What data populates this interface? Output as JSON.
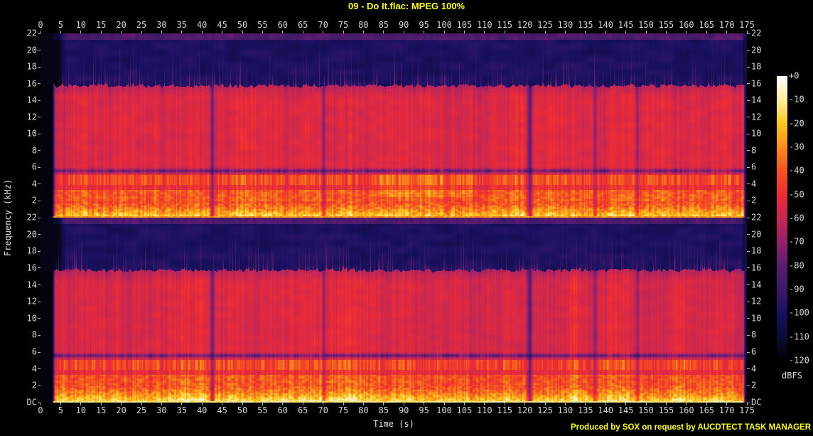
{
  "header": {
    "title": "09 - Do It.flac: MPEG 100%"
  },
  "footer": {
    "credit": "Produced by SOX on request by AUCDTECT TASK MANAGER"
  },
  "axes": {
    "xlabel": "Time (s)",
    "ylabel": "Frequency (kHz)",
    "time_ticks": [
      0,
      5,
      10,
      15,
      20,
      25,
      30,
      35,
      40,
      45,
      50,
      55,
      60,
      65,
      70,
      75,
      80,
      85,
      90,
      95,
      100,
      105,
      110,
      115,
      120,
      125,
      130,
      135,
      140,
      145,
      150,
      155,
      160,
      165,
      170,
      175
    ],
    "freq_ticks": [
      "22",
      "20",
      "18",
      "16",
      "14",
      "12",
      "10",
      "8",
      "6",
      "4",
      "2"
    ],
    "dc_label": "DC"
  },
  "colorbar": {
    "label": "dBFS",
    "ticks": [
      "+0",
      "-10",
      "-20",
      "-30",
      "-40",
      "-50",
      "-60",
      "-70",
      "-80",
      "-90",
      "-100",
      "-110",
      "-120"
    ],
    "palette": [
      {
        "db": 0,
        "color": "#ffffff"
      },
      {
        "db": -10,
        "color": "#fdeea0"
      },
      {
        "db": -20,
        "color": "#fbc81c"
      },
      {
        "db": -30,
        "color": "#f88d1d"
      },
      {
        "db": -40,
        "color": "#f4541e"
      },
      {
        "db": -50,
        "color": "#ed2b36"
      },
      {
        "db": -60,
        "color": "#c52753"
      },
      {
        "db": -70,
        "color": "#92216e"
      },
      {
        "db": -80,
        "color": "#5b1c70"
      },
      {
        "db": -90,
        "color": "#3a1a66"
      },
      {
        "db": -100,
        "color": "#191060"
      },
      {
        "db": -110,
        "color": "#0d0b35"
      },
      {
        "db": -120,
        "color": "#000000"
      }
    ]
  },
  "chart_data": {
    "type": "heatmap",
    "subtype": "stereo-audio-spectrogram",
    "title": "09 - Do It.flac: MPEG 100%",
    "xlabel": "Time (s)",
    "ylabel": "Frequency (kHz)",
    "x_range_s": [
      0,
      175
    ],
    "x_tick_step_s": 5,
    "y_range_khz_per_channel": [
      0,
      22
    ],
    "y_tick_step_khz": 2,
    "z_range_dbfs": [
      -120,
      0
    ],
    "legend_label": "dBFS",
    "channels": [
      "left",
      "right"
    ],
    "features": {
      "mpeg_lowpass_cutoff_khz": 15.8,
      "lead_in_silence_s": 2.8,
      "track_end_fade_s": 173.3,
      "hf_dead_zone": "dark navy noise floor ~-100 dBFS above cutoff with sparse purple transient streaks",
      "top_edge_strip_khz": 21.3,
      "body_level_dbfs": -52,
      "quiet_notch_band_khz": [
        5.35,
        5.8
      ],
      "loud_bands_khz": [
        [
          0,
          1.95
        ],
        [
          2.0,
          3.3
        ],
        [
          3.9,
          5.05
        ]
      ],
      "dc_line": "bright orange-red line at 0 Hz of left channel, bright yellow at 0 Hz of right channel",
      "gap_times_s": [
        42.6,
        70.2,
        121.2,
        137.4,
        147.9
      ]
    },
    "render": {
      "time_range_s": 175,
      "cutoff_khz": 15.78,
      "cutoff_jitter_khz": 0.45,
      "start_s": 2.8,
      "hf_floor_start_s": 4.3,
      "end_fade_start_s": 173.3,
      "top_strip_khz": 21.3,
      "dip_line_khz": [
        5.35,
        5.8
      ],
      "gaps": [
        {
          "t": 42.6,
          "w": 0.6,
          "d": 0.4
        },
        {
          "t": 70.2,
          "w": 0.45,
          "d": 0.3
        },
        {
          "t": 121.2,
          "w": 0.7,
          "d": 0.5
        },
        {
          "t": 137.4,
          "w": 0.5,
          "d": 0.32
        },
        {
          "t": 147.9,
          "w": 0.4,
          "d": 0.25
        }
      ],
      "warm_regions": [
        {
          "ch": 0,
          "t0": 84,
          "t1": 107,
          "f0": 2.4,
          "f1": 5.2,
          "boost": 0.06
        }
      ],
      "channel_params": [
        {
          "seed": 7,
          "dc_level": 0.76,
          "low_boost": 0.0
        },
        {
          "seed": 131,
          "dc_level": 0.9,
          "low_boost": 0.03
        }
      ]
    }
  }
}
